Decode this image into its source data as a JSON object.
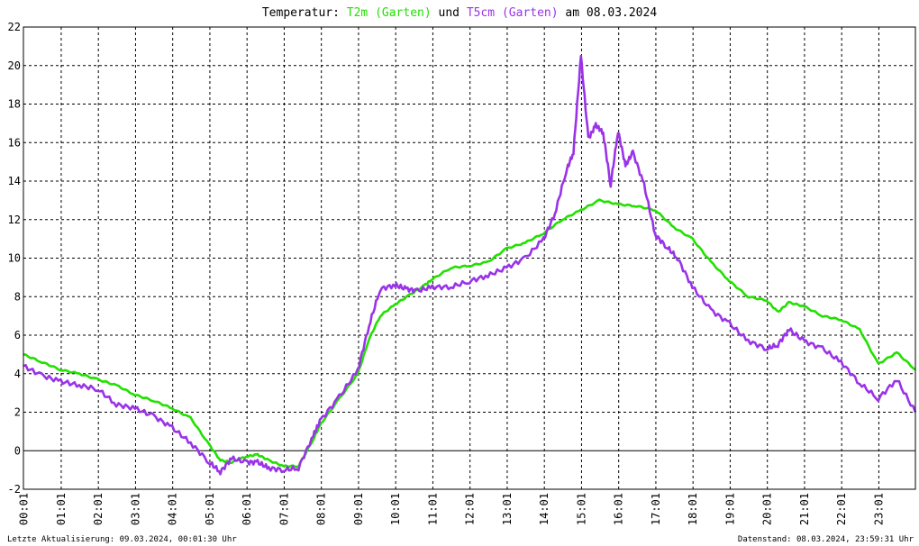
{
  "title": {
    "prefix": "Temperatur: ",
    "series1": "T2m (Garten)",
    "middle": " und ",
    "series2": "T5cm (Garten)",
    "suffix": " am 08.03.2024"
  },
  "footer": {
    "left": "Letzte Aktualisierung: 09.03.2024, 00:01:30 Uhr",
    "right": "Datenstand: 08.03.2024, 23:59:31 Uhr"
  },
  "chart_data": {
    "type": "line",
    "title": "Temperatur: T2m (Garten) und T5cm (Garten) am 08.03.2024",
    "xlabel": "",
    "ylabel": "",
    "xlim": [
      0,
      24
    ],
    "ylim": [
      -2,
      22
    ],
    "y_ticks": [
      -2,
      0,
      2,
      4,
      6,
      8,
      10,
      12,
      14,
      16,
      18,
      20,
      22
    ],
    "x_ticks": [
      "00:01",
      "01:01",
      "02:01",
      "03:01",
      "04:01",
      "05:01",
      "06:01",
      "07:01",
      "08:01",
      "09:01",
      "10:01",
      "11:01",
      "12:01",
      "13:01",
      "14:01",
      "15:01",
      "16:01",
      "17:01",
      "18:01",
      "19:01",
      "20:01",
      "21:01",
      "22:01",
      "23:01"
    ],
    "grid": true,
    "series": [
      {
        "name": "T2m (Garten)",
        "color": "#22e000",
        "points": [
          [
            0.0,
            5.0
          ],
          [
            0.5,
            4.6
          ],
          [
            1.0,
            4.2
          ],
          [
            1.5,
            4.0
          ],
          [
            2.0,
            3.7
          ],
          [
            2.5,
            3.4
          ],
          [
            3.0,
            2.9
          ],
          [
            3.5,
            2.6
          ],
          [
            4.0,
            2.2
          ],
          [
            4.5,
            1.7
          ],
          [
            5.0,
            0.3
          ],
          [
            5.3,
            -0.5
          ],
          [
            5.6,
            -0.6
          ],
          [
            6.0,
            -0.3
          ],
          [
            6.3,
            -0.2
          ],
          [
            6.6,
            -0.5
          ],
          [
            7.0,
            -0.8
          ],
          [
            7.4,
            -0.8
          ],
          [
            7.8,
            0.6
          ],
          [
            8.0,
            1.4
          ],
          [
            8.5,
            2.7
          ],
          [
            9.0,
            4.0
          ],
          [
            9.3,
            5.8
          ],
          [
            9.6,
            7.0
          ],
          [
            10.0,
            7.6
          ],
          [
            10.4,
            8.1
          ],
          [
            10.8,
            8.6
          ],
          [
            11.0,
            8.9
          ],
          [
            11.5,
            9.5
          ],
          [
            12.0,
            9.6
          ],
          [
            12.5,
            9.8
          ],
          [
            13.0,
            10.5
          ],
          [
            13.5,
            10.8
          ],
          [
            14.0,
            11.3
          ],
          [
            14.5,
            12.0
          ],
          [
            15.0,
            12.5
          ],
          [
            15.5,
            13.0
          ],
          [
            16.0,
            12.8
          ],
          [
            16.5,
            12.7
          ],
          [
            17.0,
            12.5
          ],
          [
            17.5,
            11.6
          ],
          [
            18.0,
            11.0
          ],
          [
            18.5,
            9.8
          ],
          [
            19.0,
            8.8
          ],
          [
            19.5,
            8.0
          ],
          [
            20.0,
            7.8
          ],
          [
            20.3,
            7.2
          ],
          [
            20.6,
            7.7
          ],
          [
            21.0,
            7.5
          ],
          [
            21.5,
            7.0
          ],
          [
            22.0,
            6.8
          ],
          [
            22.5,
            6.3
          ],
          [
            23.0,
            4.5
          ],
          [
            23.5,
            5.1
          ],
          [
            24.0,
            4.2
          ]
        ]
      },
      {
        "name": "T5cm (Garten)",
        "color": "#9a33e8",
        "points": [
          [
            0.0,
            4.4
          ],
          [
            0.5,
            3.9
          ],
          [
            1.0,
            3.6
          ],
          [
            1.5,
            3.4
          ],
          [
            2.0,
            3.2
          ],
          [
            2.5,
            2.4
          ],
          [
            3.0,
            2.2
          ],
          [
            3.5,
            1.8
          ],
          [
            4.0,
            1.2
          ],
          [
            4.5,
            0.4
          ],
          [
            5.0,
            -0.6
          ],
          [
            5.3,
            -1.1
          ],
          [
            5.6,
            -0.4
          ],
          [
            6.0,
            -0.6
          ],
          [
            6.3,
            -0.6
          ],
          [
            6.6,
            -0.9
          ],
          [
            7.0,
            -1.0
          ],
          [
            7.4,
            -0.9
          ],
          [
            7.8,
            0.8
          ],
          [
            8.0,
            1.6
          ],
          [
            8.5,
            2.8
          ],
          [
            9.0,
            4.2
          ],
          [
            9.3,
            6.5
          ],
          [
            9.6,
            8.4
          ],
          [
            10.0,
            8.6
          ],
          [
            10.3,
            8.4
          ],
          [
            10.6,
            8.3
          ],
          [
            11.0,
            8.5
          ],
          [
            11.5,
            8.5
          ],
          [
            12.0,
            8.8
          ],
          [
            12.5,
            9.1
          ],
          [
            13.0,
            9.5
          ],
          [
            13.5,
            10.0
          ],
          [
            14.0,
            11.0
          ],
          [
            14.3,
            12.3
          ],
          [
            14.6,
            14.5
          ],
          [
            14.8,
            15.5
          ],
          [
            15.0,
            20.5
          ],
          [
            15.2,
            16.2
          ],
          [
            15.4,
            16.9
          ],
          [
            15.6,
            16.5
          ],
          [
            15.8,
            13.8
          ],
          [
            16.0,
            16.6
          ],
          [
            16.2,
            14.8
          ],
          [
            16.4,
            15.5
          ],
          [
            16.7,
            13.8
          ],
          [
            17.0,
            11.2
          ],
          [
            17.3,
            10.6
          ],
          [
            17.6,
            10.0
          ],
          [
            18.0,
            8.5
          ],
          [
            18.5,
            7.3
          ],
          [
            19.0,
            6.6
          ],
          [
            19.5,
            5.7
          ],
          [
            20.0,
            5.3
          ],
          [
            20.3,
            5.5
          ],
          [
            20.6,
            6.3
          ],
          [
            21.0,
            5.7
          ],
          [
            21.5,
            5.3
          ],
          [
            22.0,
            4.6
          ],
          [
            22.5,
            3.5
          ],
          [
            23.0,
            2.7
          ],
          [
            23.5,
            3.7
          ],
          [
            24.0,
            2.0
          ]
        ]
      }
    ]
  }
}
